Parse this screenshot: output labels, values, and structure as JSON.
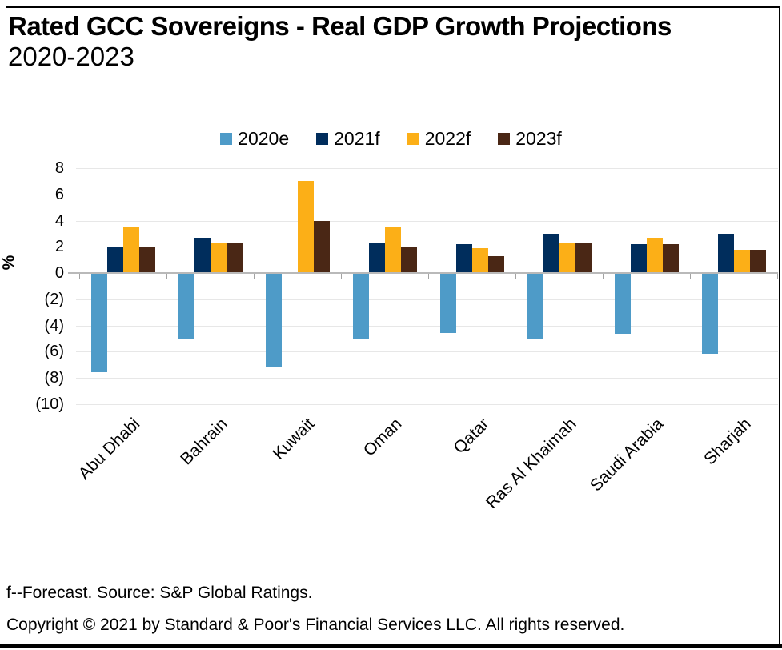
{
  "title": {
    "line1": "Rated GCC Sovereigns - Real GDP Growth Projections",
    "line2": "2020-2023"
  },
  "chart_data": {
    "type": "bar",
    "title": "Rated GCC Sovereigns - Real GDP Growth Projections 2020-2023",
    "categories": [
      "Abu Dhabi",
      "Bahrain",
      "Kuwait",
      "Oman",
      "Qatar",
      "Ras Al Khaimah",
      "Saudi Arabia",
      "Sharjah"
    ],
    "series": [
      {
        "name": "2020e",
        "color": "#4e9bc8",
        "values": [
          -7.5,
          -5.0,
          -7.1,
          -5.0,
          -4.5,
          -5.0,
          -4.6,
          -6.1
        ]
      },
      {
        "name": "2021f",
        "color": "#002d5c",
        "values": [
          2.0,
          2.7,
          0.0,
          2.3,
          2.2,
          3.0,
          2.2,
          3.0
        ]
      },
      {
        "name": "2022f",
        "color": "#fcaf17",
        "values": [
          3.5,
          2.3,
          7.0,
          3.5,
          1.9,
          2.3,
          2.7,
          1.8
        ]
      },
      {
        "name": "2023f",
        "color": "#4a2715",
        "values": [
          2.0,
          2.3,
          4.0,
          2.0,
          1.3,
          2.3,
          2.2,
          1.8
        ]
      }
    ],
    "ylabel": "%",
    "ylim": [
      -10,
      8
    ],
    "ytick_step": 2,
    "ytick_labels": [
      "8",
      "6",
      "4",
      "2",
      "0",
      "(2)",
      "(4)",
      "(6)",
      "(8)",
      "(10)"
    ],
    "grid": true,
    "legend_position": "top",
    "gridline_color": "#e7e7e7",
    "axis_color": "#b9b9b9"
  },
  "footer": {
    "line1": "f--Forecast. Source: S&P Global Ratings.",
    "line2": "Copyright © 2021 by Standard & Poor's Financial Services LLC. All rights reserved."
  }
}
